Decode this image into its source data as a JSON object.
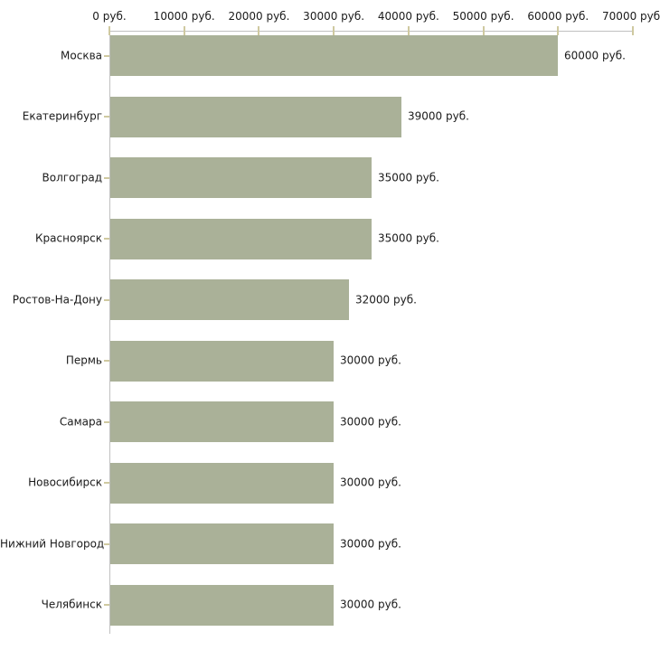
{
  "chart_data": {
    "type": "bar",
    "orientation": "horizontal",
    "categories": [
      "Москва",
      "Екатеринбург",
      "Волгоград",
      "Красноярск",
      "Ростов-На-Дону",
      "Пермь",
      "Самара",
      "Новосибирск",
      "Нижний Новгород",
      "Челябинск"
    ],
    "values": [
      60000,
      39000,
      35000,
      35000,
      32000,
      30000,
      30000,
      30000,
      30000,
      30000
    ],
    "value_labels": [
      "60000 руб.",
      "39000 руб.",
      "35000 руб.",
      "35000 руб.",
      "32000 руб.",
      "30000 руб.",
      "30000 руб.",
      "30000 руб.",
      "30000 руб.",
      "30000 руб."
    ],
    "unit": "руб.",
    "x_axis": {
      "position": "top",
      "min": 0,
      "max": 70000,
      "ticks": [
        0,
        10000,
        20000,
        30000,
        40000,
        50000,
        60000,
        70000
      ],
      "tick_labels": [
        "0 руб.",
        "10000 руб.",
        "20000 руб.",
        "30000 руб.",
        "40000 руб.",
        "50000 руб.",
        "60000 руб.",
        "70000 руб."
      ]
    },
    "legend": null,
    "grid": false,
    "colors": {
      "bar": "#aab198",
      "axis_line": "#c0c0c0",
      "tick": "#cfc9a0",
      "text": "#1a1a1a",
      "background": "#ffffff"
    }
  }
}
